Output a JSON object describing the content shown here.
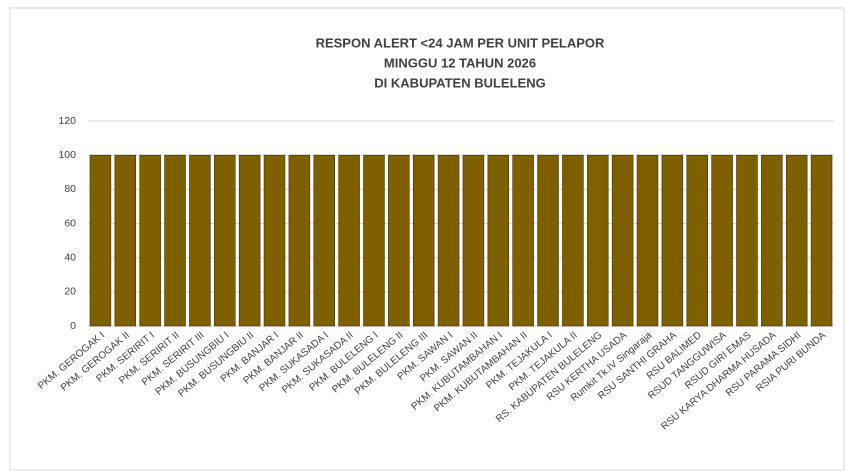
{
  "chart_data": {
    "type": "bar",
    "title": [
      "RESPON ALERT <24 JAM PER UNIT PELAPOR",
      "MINGGU 12 TAHUN 2026",
      "DI KABUPATEN BULELENG"
    ],
    "categories": [
      "PKM. GEROGAK I",
      "PKM. GEROGAK II",
      "PKM. SERIRIT I",
      "PKM. SERIRIT II",
      "PKM. SERIRIT III",
      "PKM. BUSUNGBIU I",
      "PKM. BUSUNGBIU II",
      "PKM. BANJAR I",
      "PKM. BANJAR II",
      "PKM. SUKASADA I",
      "PKM. SUKASADA II",
      "PKM. BULELENG I",
      "PKM. BULELENG II",
      "PKM. BULELENG III",
      "PKM. SAWAN I",
      "PKM. SAWAN II",
      "PKM. KUBUTAMBAHAN I",
      "PKM. KUBUTAMBAHAN II",
      "PKM. TEJAKULA I",
      "PKM. TEJAKULA II",
      "RS. KABUPATEN BULELENG",
      "RSU KERTHA USADA",
      "Rumkit Tk.IV Singaraja",
      "RSU SANTHI GRAHA",
      "RSU BALIMED",
      "RSUD TANGGUWISA",
      "RSUD GIRI EMAS",
      "RSU KARYA DHARMA HUSADA",
      "RSU PARAMA SIDHI",
      "RSIA PURI BUNDA"
    ],
    "values": [
      100,
      100,
      100,
      100,
      100,
      100,
      100,
      100,
      100,
      100,
      100,
      100,
      100,
      100,
      100,
      100,
      100,
      100,
      100,
      100,
      100,
      100,
      100,
      100,
      100,
      100,
      100,
      100,
      100,
      100
    ],
    "color": "#7f6000",
    "ylim": [
      0,
      120
    ],
    "yticks": [
      0,
      20,
      40,
      60,
      80,
      100,
      120
    ],
    "grid": true
  }
}
